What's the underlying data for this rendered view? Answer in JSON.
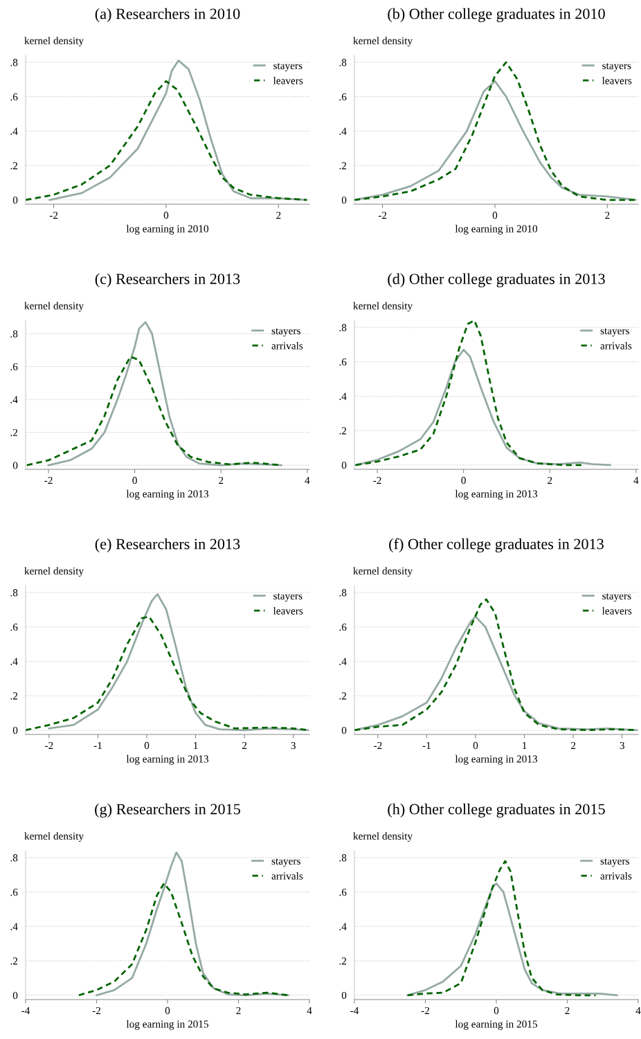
{
  "chart_data": [
    {
      "type": "line",
      "title": "(a) Researchers in 2010",
      "xlabel": "log earning in 2010",
      "ylabel": "kernel density",
      "xlim": [
        -2.5,
        2.55
      ],
      "xticks": [
        -2,
        0,
        2
      ],
      "ylim": [
        -0.025,
        0.84
      ],
      "yticks": [
        0,
        {
          "value": 0.2,
          "label": ".2"
        },
        {
          "value": 0.4,
          "label": ".4"
        },
        {
          "value": 0.6,
          "label": ".6"
        },
        {
          "value": 0.8,
          "label": ".8"
        }
      ],
      "grid": "y",
      "legend": "top right",
      "series": [
        {
          "name": "stayers",
          "color": "#95aaa3",
          "line_style": "solid",
          "x": [
            -2.07,
            -1.5,
            -1,
            -0.5,
            0,
            0.1,
            0.22,
            0.4,
            0.6,
            0.8,
            1.0,
            1.2,
            1.5,
            2,
            2.5
          ],
          "values": [
            0,
            0.04,
            0.13,
            0.3,
            0.62,
            0.75,
            0.81,
            0.76,
            0.58,
            0.35,
            0.15,
            0.05,
            0.01,
            0.01,
            0
          ]
        },
        {
          "name": "leavers",
          "color": "#006400",
          "line_style": "dashed",
          "x": [
            -2.5,
            -2,
            -1.5,
            -1,
            -0.5,
            -0.2,
            0,
            0.2,
            0.5,
            0.8,
            1.0,
            1.2,
            1.5,
            2,
            2.5
          ],
          "values": [
            0,
            0.03,
            0.09,
            0.2,
            0.43,
            0.62,
            0.69,
            0.64,
            0.45,
            0.25,
            0.13,
            0.07,
            0.03,
            0.01,
            0
          ]
        }
      ]
    },
    {
      "type": "line",
      "title": "(b) Other college graduates in 2010",
      "xlabel": "log earning in 2010",
      "ylabel": "kernel density",
      "xlim": [
        -2.5,
        2.55
      ],
      "xticks": [
        -2,
        0,
        2
      ],
      "ylim": [
        -0.025,
        0.84
      ],
      "yticks": [
        0,
        {
          "value": 0.2,
          "label": ".2"
        },
        {
          "value": 0.4,
          "label": ".4"
        },
        {
          "value": 0.6,
          "label": ".6"
        },
        {
          "value": 0.8,
          "label": ".8"
        }
      ],
      "grid": "y",
      "legend": "top right",
      "series": [
        {
          "name": "stayers",
          "color": "#95aaa3",
          "line_style": "solid",
          "x": [
            -2.5,
            -2,
            -1.5,
            -1,
            -0.5,
            -0.2,
            0,
            0.2,
            0.5,
            0.8,
            1.0,
            1.2,
            1.5,
            2,
            2.5
          ],
          "values": [
            0,
            0.03,
            0.08,
            0.17,
            0.4,
            0.63,
            0.69,
            0.6,
            0.4,
            0.22,
            0.13,
            0.07,
            0.03,
            0.02,
            0
          ]
        },
        {
          "name": "leavers",
          "color": "#006400",
          "line_style": "dashed",
          "x": [
            -2.5,
            -2,
            -1.5,
            -1,
            -0.7,
            -0.4,
            -0.2,
            0,
            0.2,
            0.4,
            0.6,
            0.8,
            1.0,
            1.2,
            1.5,
            2,
            2.5
          ],
          "values": [
            0,
            0.02,
            0.05,
            0.12,
            0.18,
            0.38,
            0.55,
            0.72,
            0.8,
            0.7,
            0.52,
            0.32,
            0.17,
            0.08,
            0.02,
            0,
            0
          ]
        }
      ]
    },
    {
      "type": "line",
      "title": "(c) Researchers in 2013",
      "xlabel": "log earning in 2013",
      "ylabel": "kernel density",
      "xlim": [
        -2.53,
        4.05
      ],
      "xticks": [
        -2,
        0,
        2,
        4
      ],
      "ylim": [
        -0.025,
        0.88
      ],
      "yticks": [
        0,
        {
          "value": 0.2,
          "label": ".2"
        },
        {
          "value": 0.4,
          "label": ".4"
        },
        {
          "value": 0.6,
          "label": ".6"
        },
        {
          "value": 0.8,
          "label": ".8"
        }
      ],
      "grid": "y",
      "legend": "top right",
      "series": [
        {
          "name": "stayers",
          "color": "#95aaa3",
          "line_style": "solid",
          "x": [
            -2,
            -1.5,
            -1,
            -0.7,
            -0.4,
            -0.2,
            0,
            0.1,
            0.25,
            0.4,
            0.6,
            0.8,
            1,
            1.2,
            1.5,
            2,
            2.5,
            3,
            3.4
          ],
          "values": [
            0,
            0.03,
            0.1,
            0.2,
            0.4,
            0.55,
            0.72,
            0.83,
            0.87,
            0.8,
            0.55,
            0.3,
            0.13,
            0.05,
            0.01,
            0,
            0.01,
            0.005,
            0
          ]
        },
        {
          "name": "arrivals",
          "color": "#006400",
          "line_style": "dashed",
          "x": [
            -2.5,
            -2,
            -1.5,
            -1,
            -0.7,
            -0.4,
            -0.1,
            0.1,
            0.4,
            0.7,
            1,
            1.3,
            1.7,
            2.2,
            2.7,
            3,
            3.4
          ],
          "values": [
            0,
            0.03,
            0.09,
            0.15,
            0.3,
            0.52,
            0.66,
            0.64,
            0.47,
            0.27,
            0.12,
            0.05,
            0.02,
            0.005,
            0.015,
            0.01,
            0
          ]
        }
      ]
    },
    {
      "type": "line",
      "title": "(d) Other college graduates in 2013",
      "xlabel": "log earning in 2013",
      "ylabel": "kernel density",
      "xlim": [
        -2.53,
        4.05
      ],
      "xticks": [
        -2,
        0,
        2,
        4
      ],
      "ylim": [
        -0.025,
        0.84
      ],
      "yticks": [
        0,
        {
          "value": 0.2,
          "label": ".2"
        },
        {
          "value": 0.4,
          "label": ".4"
        },
        {
          "value": 0.6,
          "label": ".6"
        },
        {
          "value": 0.8,
          "label": ".8"
        }
      ],
      "grid": "y",
      "legend": "top right",
      "series": [
        {
          "name": "stayers",
          "color": "#95aaa3",
          "line_style": "solid",
          "x": [
            -2.5,
            -2,
            -1.5,
            -1,
            -0.7,
            -0.4,
            -0.2,
            0,
            0.15,
            0.4,
            0.7,
            1,
            1.3,
            1.7,
            2.2,
            2.7,
            3,
            3.4
          ],
          "values": [
            0,
            0.03,
            0.08,
            0.15,
            0.25,
            0.45,
            0.6,
            0.67,
            0.63,
            0.45,
            0.25,
            0.1,
            0.04,
            0.01,
            0.005,
            0.015,
            0.005,
            0
          ]
        },
        {
          "name": "arrivals",
          "color": "#006400",
          "line_style": "dashed",
          "x": [
            -2.5,
            -2,
            -1.5,
            -1,
            -0.7,
            -0.4,
            -0.1,
            0.1,
            0.25,
            0.4,
            0.6,
            0.8,
            1,
            1.3,
            1.7,
            2.3,
            2.8
          ],
          "values": [
            0,
            0.02,
            0.05,
            0.09,
            0.18,
            0.4,
            0.68,
            0.82,
            0.84,
            0.75,
            0.5,
            0.27,
            0.13,
            0.04,
            0.01,
            0,
            0
          ]
        }
      ]
    },
    {
      "type": "line",
      "title": "(e) Researchers in 2013",
      "xlabel": "log earning in 2013",
      "ylabel": "kernel density",
      "xlim": [
        -2.48,
        3.33
      ],
      "xticks": [
        -2,
        -1,
        0,
        1,
        2,
        3
      ],
      "ylim": [
        -0.025,
        0.84
      ],
      "yticks": [
        0,
        {
          "value": 0.2,
          "label": ".2"
        },
        {
          "value": 0.4,
          "label": ".4"
        },
        {
          "value": 0.6,
          "label": ".6"
        },
        {
          "value": 0.8,
          "label": ".8"
        }
      ],
      "grid": "y",
      "legend": "top right",
      "series": [
        {
          "name": "stayers",
          "color": "#95aaa3",
          "line_style": "solid",
          "x": [
            -2,
            -1.5,
            -1,
            -0.7,
            -0.4,
            -0.1,
            0.1,
            0.22,
            0.4,
            0.6,
            0.8,
            1,
            1.2,
            1.5,
            2,
            2.5,
            3,
            3.3
          ],
          "values": [
            0.01,
            0.03,
            0.12,
            0.25,
            0.4,
            0.62,
            0.75,
            0.79,
            0.7,
            0.48,
            0.25,
            0.1,
            0.03,
            0.005,
            0,
            0.01,
            0.005,
            0
          ]
        },
        {
          "name": "leavers",
          "color": "#006400",
          "line_style": "dashed",
          "x": [
            -2.48,
            -2,
            -1.5,
            -1,
            -0.7,
            -0.4,
            -0.1,
            0.05,
            0.3,
            0.6,
            0.9,
            1.1,
            1.4,
            1.8,
            2.5,
            3,
            3.3
          ],
          "values": [
            0,
            0.03,
            0.07,
            0.16,
            0.3,
            0.5,
            0.65,
            0.66,
            0.55,
            0.35,
            0.17,
            0.1,
            0.05,
            0.01,
            0.015,
            0.01,
            0
          ]
        }
      ]
    },
    {
      "type": "line",
      "title": "(f) Other college graduates in 2013",
      "xlabel": "log earning in 2013",
      "ylabel": "kernel density",
      "xlim": [
        -2.48,
        3.33
      ],
      "xticks": [
        -2,
        -1,
        0,
        1,
        2,
        3
      ],
      "ylim": [
        -0.025,
        0.84
      ],
      "yticks": [
        0,
        {
          "value": 0.2,
          "label": ".2"
        },
        {
          "value": 0.4,
          "label": ".4"
        },
        {
          "value": 0.6,
          "label": ".6"
        },
        {
          "value": 0.8,
          "label": ".8"
        }
      ],
      "grid": "y",
      "legend": "top right",
      "series": [
        {
          "name": "stayers",
          "color": "#95aaa3",
          "line_style": "solid",
          "x": [
            -2.48,
            -2,
            -1.5,
            -1,
            -0.7,
            -0.4,
            -0.1,
            0,
            0.2,
            0.5,
            0.8,
            1,
            1.3,
            1.7,
            2.3,
            2.7,
            3,
            3.3
          ],
          "values": [
            0,
            0.03,
            0.08,
            0.16,
            0.3,
            0.48,
            0.63,
            0.66,
            0.6,
            0.4,
            0.2,
            0.11,
            0.04,
            0.01,
            0.005,
            0.01,
            0.005,
            0
          ]
        },
        {
          "name": "leavers",
          "color": "#006400",
          "line_style": "dashed",
          "x": [
            -2.48,
            -2,
            -1.5,
            -1,
            -0.7,
            -0.4,
            -0.1,
            0.1,
            0.22,
            0.4,
            0.6,
            0.8,
            1,
            1.3,
            1.7,
            2.3,
            2.8,
            3.3
          ],
          "values": [
            0,
            0.02,
            0.03,
            0.12,
            0.22,
            0.38,
            0.6,
            0.73,
            0.76,
            0.68,
            0.45,
            0.24,
            0.1,
            0.03,
            0.005,
            0,
            0.005,
            0
          ]
        }
      ]
    },
    {
      "type": "line",
      "title": "(g) Researchers in 2015",
      "xlabel": "log earning in 2015",
      "ylabel": "kernel density",
      "xlim": [
        -4,
        4
      ],
      "xticks": [
        -4,
        -2,
        0,
        2,
        4
      ],
      "ylim": [
        -0.025,
        0.84
      ],
      "yticks": [
        0,
        {
          "value": 0.2,
          "label": ".2"
        },
        {
          "value": 0.4,
          "label": ".4"
        },
        {
          "value": 0.6,
          "label": ".6"
        },
        {
          "value": 0.8,
          "label": ".8"
        }
      ],
      "grid": "y",
      "legend": "top right",
      "series": [
        {
          "name": "stayers",
          "color": "#95aaa3",
          "line_style": "solid",
          "x": [
            -2,
            -1.5,
            -1,
            -0.6,
            -0.3,
            -0.1,
            0.1,
            0.25,
            0.4,
            0.6,
            0.8,
            1,
            1.3,
            1.7,
            2.2,
            2.8,
            3.4
          ],
          "values": [
            0,
            0.03,
            0.1,
            0.3,
            0.5,
            0.62,
            0.75,
            0.83,
            0.78,
            0.55,
            0.3,
            0.13,
            0.04,
            0.005,
            0,
            0.01,
            0
          ]
        },
        {
          "name": "arrivals",
          "color": "#006400",
          "line_style": "dashed",
          "x": [
            -2.5,
            -2,
            -1.5,
            -1,
            -0.6,
            -0.3,
            -0.1,
            0.1,
            0.4,
            0.7,
            1,
            1.3,
            1.7,
            2.2,
            2.8,
            3.4
          ],
          "values": [
            0,
            0.03,
            0.08,
            0.18,
            0.38,
            0.58,
            0.65,
            0.6,
            0.42,
            0.23,
            0.11,
            0.04,
            0.015,
            0.005,
            0.015,
            0
          ]
        }
      ]
    },
    {
      "type": "line",
      "title": "(h) Other college graduates in 2015",
      "xlabel": "log earning in 2015",
      "ylabel": "kernel density",
      "xlim": [
        -4,
        4
      ],
      "xticks": [
        -4,
        -2,
        0,
        2,
        4
      ],
      "ylim": [
        -0.025,
        0.84
      ],
      "yticks": [
        0,
        {
          "value": 0.2,
          "label": ".2"
        },
        {
          "value": 0.4,
          "label": ".4"
        },
        {
          "value": 0.6,
          "label": ".6"
        },
        {
          "value": 0.8,
          "label": ".8"
        }
      ],
      "grid": "y",
      "legend": "top right",
      "series": [
        {
          "name": "stayers",
          "color": "#95aaa3",
          "line_style": "solid",
          "x": [
            -2.5,
            -2,
            -1.5,
            -1,
            -0.6,
            -0.3,
            -0.1,
            0,
            0.2,
            0.4,
            0.6,
            0.8,
            1,
            1.3,
            1.8,
            2.4,
            2.9,
            3.4
          ],
          "values": [
            0,
            0.03,
            0.08,
            0.17,
            0.35,
            0.52,
            0.63,
            0.65,
            0.6,
            0.45,
            0.3,
            0.15,
            0.07,
            0.03,
            0.01,
            0.01,
            0.01,
            0
          ]
        },
        {
          "name": "arrivals",
          "color": "#006400",
          "line_style": "dashed",
          "x": [
            -2.5,
            -2,
            -1.5,
            -1,
            -0.6,
            -0.3,
            -0.1,
            0.1,
            0.25,
            0.4,
            0.6,
            0.8,
            1,
            1.3,
            1.7,
            2.3,
            2.8
          ],
          "values": [
            0,
            0.01,
            0.015,
            0.07,
            0.3,
            0.5,
            0.63,
            0.73,
            0.78,
            0.72,
            0.48,
            0.25,
            0.1,
            0.03,
            0.005,
            0,
            0
          ]
        }
      ]
    }
  ]
}
